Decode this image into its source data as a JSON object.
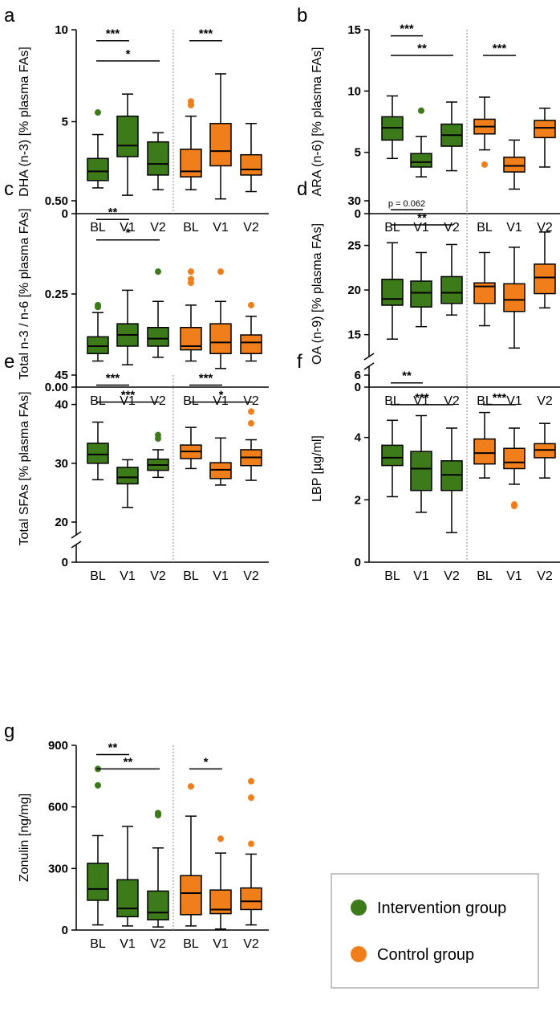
{
  "colors": {
    "intervention": "#3d7a1a",
    "control": "#f07f1b",
    "axis": "#000000",
    "divider": "#888888",
    "legend_border": "#888888"
  },
  "legend": {
    "items": [
      {
        "label": "Intervention group",
        "color": "#3d7a1a"
      },
      {
        "label": "Control group",
        "color": "#f07f1b"
      }
    ]
  },
  "chart_data": [
    {
      "panel": "a",
      "type": "boxplot",
      "ylabel": "DHA (n-3) [% plasma FAs]",
      "ylim": [
        0,
        10
      ],
      "yticks": [
        "0",
        "5",
        "10"
      ],
      "ytick_values": [
        0,
        5,
        10
      ],
      "axis_break": false,
      "categories": [
        "BL",
        "V1",
        "V2",
        "BL",
        "V1",
        "V2"
      ],
      "groups": [
        "intervention",
        "intervention",
        "intervention",
        "control",
        "control",
        "control"
      ],
      "boxes": [
        {
          "min": 1.4,
          "q1": 1.8,
          "median": 2.3,
          "q3": 3.0,
          "max": 4.3,
          "outliers": [
            5.5
          ]
        },
        {
          "min": 1.0,
          "q1": 3.1,
          "median": 3.7,
          "q3": 5.3,
          "max": 6.5,
          "outliers": []
        },
        {
          "min": 1.3,
          "q1": 2.1,
          "median": 2.7,
          "q3": 3.9,
          "max": 4.4,
          "outliers": []
        },
        {
          "min": 1.3,
          "q1": 2.0,
          "median": 2.3,
          "q3": 3.5,
          "max": 5.3,
          "outliers": [
            5.9,
            6.1
          ]
        },
        {
          "min": 0.8,
          "q1": 2.6,
          "median": 3.4,
          "q3": 4.9,
          "max": 7.6,
          "outliers": []
        },
        {
          "min": 1.2,
          "q1": 2.1,
          "median": 2.4,
          "q3": 3.2,
          "max": 4.9,
          "outliers": []
        }
      ],
      "brackets": [
        {
          "from": 0,
          "to": 1,
          "label": "***",
          "y": 9.4
        },
        {
          "from": 0,
          "to": 2,
          "label": "*",
          "y": 8.3
        },
        {
          "from": 3,
          "to": 4,
          "label": "***",
          "y": 9.4
        }
      ]
    },
    {
      "panel": "b",
      "type": "boxplot",
      "ylabel": "ARA (n-6) [% plasma FAs]",
      "ylim": [
        0,
        15
      ],
      "yticks": [
        "0",
        "5",
        "10",
        "15"
      ],
      "ytick_values": [
        0,
        5,
        10,
        15
      ],
      "axis_break": false,
      "categories": [
        "BL",
        "V1",
        "V2",
        "BL",
        "V1",
        "V2"
      ],
      "groups": [
        "intervention",
        "intervention",
        "intervention",
        "control",
        "control",
        "control"
      ],
      "boxes": [
        {
          "min": 4.5,
          "q1": 6.0,
          "median": 7.0,
          "q3": 7.9,
          "max": 9.6,
          "outliers": []
        },
        {
          "min": 3.0,
          "q1": 3.8,
          "median": 4.2,
          "q3": 4.9,
          "max": 6.3,
          "outliers": [
            8.4
          ]
        },
        {
          "min": 3.5,
          "q1": 5.5,
          "median": 6.4,
          "q3": 7.3,
          "max": 9.1,
          "outliers": []
        },
        {
          "min": 5.2,
          "q1": 6.5,
          "median": 7.1,
          "q3": 7.7,
          "max": 9.5,
          "outliers": [
            4.0
          ]
        },
        {
          "min": 2.0,
          "q1": 3.4,
          "median": 3.9,
          "q3": 4.6,
          "max": 6.0,
          "outliers": []
        },
        {
          "min": 3.8,
          "q1": 6.2,
          "median": 7.0,
          "q3": 7.6,
          "max": 8.6,
          "outliers": []
        }
      ],
      "brackets": [
        {
          "from": 0,
          "to": 1,
          "label": "***",
          "y": 14.5
        },
        {
          "from": 0,
          "to": 2,
          "label": "**",
          "y": 12.9
        },
        {
          "from": 3,
          "to": 4,
          "label": "***",
          "y": 12.9
        }
      ]
    },
    {
      "panel": "c",
      "type": "boxplot",
      "ylabel": "Total n-3 / n-6 [% plasma FAs]",
      "ylim": [
        0,
        0.5
      ],
      "yticks": [
        "0.00",
        "0.25",
        "0.50"
      ],
      "ytick_values": [
        0,
        0.25,
        0.5
      ],
      "axis_break": false,
      "categories": [
        "BL",
        "V1",
        "V2",
        "BL",
        "V1",
        "V2"
      ],
      "groups": [
        "intervention",
        "intervention",
        "intervention",
        "control",
        "control",
        "control"
      ],
      "boxes": [
        {
          "min": 0.07,
          "q1": 0.09,
          "median": 0.11,
          "q3": 0.135,
          "max": 0.2,
          "outliers": [
            0.215,
            0.22
          ]
        },
        {
          "min": 0.06,
          "q1": 0.11,
          "median": 0.14,
          "q3": 0.17,
          "max": 0.26,
          "outliers": []
        },
        {
          "min": 0.08,
          "q1": 0.11,
          "median": 0.13,
          "q3": 0.16,
          "max": 0.23,
          "outliers": [
            0.31
          ]
        },
        {
          "min": 0.07,
          "q1": 0.1,
          "median": 0.11,
          "q3": 0.16,
          "max": 0.22,
          "outliers": [
            0.28,
            0.29,
            0.31
          ]
        },
        {
          "min": 0.05,
          "q1": 0.09,
          "median": 0.12,
          "q3": 0.17,
          "max": 0.23,
          "outliers": [
            0.31
          ]
        },
        {
          "min": 0.07,
          "q1": 0.09,
          "median": 0.12,
          "q3": 0.14,
          "max": 0.19,
          "outliers": [
            0.22
          ]
        }
      ],
      "brackets": [
        {
          "from": 0,
          "to": 1,
          "label": "**",
          "y": 0.45
        },
        {
          "from": 0,
          "to": 2,
          "label": "*",
          "y": 0.395
        }
      ]
    },
    {
      "panel": "d",
      "type": "boxplot",
      "ylabel": "OA (n-9) [% plasma FAs]",
      "ylim": [
        0,
        30
      ],
      "yticks": [
        "0",
        "15",
        "20",
        "25",
        "30"
      ],
      "ytick_values": [
        0,
        15,
        20,
        25,
        30
      ],
      "axis_break": true,
      "break_range": [
        12,
        30
      ],
      "categories": [
        "BL",
        "V1",
        "V2",
        "BL",
        "V1",
        "V2"
      ],
      "groups": [
        "intervention",
        "intervention",
        "intervention",
        "control",
        "control",
        "control"
      ],
      "boxes": [
        {
          "min": 14.5,
          "q1": 18.3,
          "median": 19.0,
          "q3": 21.2,
          "max": 25.3,
          "outliers": []
        },
        {
          "min": 15.9,
          "q1": 18.1,
          "median": 19.7,
          "q3": 21.0,
          "max": 24.2,
          "outliers": []
        },
        {
          "min": 17.2,
          "q1": 18.5,
          "median": 19.7,
          "q3": 21.5,
          "max": 25.1,
          "outliers": []
        },
        {
          "min": 16.0,
          "q1": 18.5,
          "median": 20.4,
          "q3": 20.8,
          "max": 24.2,
          "outliers": []
        },
        {
          "min": 13.5,
          "q1": 17.6,
          "median": 18.9,
          "q3": 20.7,
          "max": 24.8,
          "outliers": []
        },
        {
          "min": 18.0,
          "q1": 19.6,
          "median": 21.4,
          "q3": 22.9,
          "max": 26.5,
          "outliers": []
        }
      ],
      "brackets": [
        {
          "from": 0,
          "to": 1,
          "label": "p = 0.062",
          "y": 29.0
        },
        {
          "from": 0,
          "to": 2,
          "label": "**",
          "y": 27.3
        }
      ]
    },
    {
      "panel": "e",
      "type": "boxplot",
      "ylabel": "Total SFAs [% plasma FAs]",
      "ylim": [
        0,
        45
      ],
      "yticks": [
        "0",
        "20",
        "30",
        "40",
        "45"
      ],
      "ytick_values": [
        0,
        20,
        30,
        40,
        45
      ],
      "axis_break": true,
      "break_range": [
        17,
        45
      ],
      "categories": [
        "BL",
        "V1",
        "V2",
        "BL",
        "V1",
        "V2"
      ],
      "groups": [
        "intervention",
        "intervention",
        "intervention",
        "control",
        "control",
        "control"
      ],
      "boxes": [
        {
          "min": 27.2,
          "q1": 30.0,
          "median": 31.5,
          "q3": 33.4,
          "max": 37.0,
          "outliers": []
        },
        {
          "min": 22.5,
          "q1": 26.5,
          "median": 27.6,
          "q3": 29.3,
          "max": 30.6,
          "outliers": []
        },
        {
          "min": 27.6,
          "q1": 28.8,
          "median": 29.7,
          "q3": 30.7,
          "max": 32.3,
          "outliers": [
            34.2,
            34.8
          ]
        },
        {
          "min": 29.1,
          "q1": 30.8,
          "median": 32.0,
          "q3": 33.1,
          "max": 36.1,
          "outliers": []
        },
        {
          "min": 26.3,
          "q1": 27.4,
          "median": 28.9,
          "q3": 30.1,
          "max": 34.3,
          "outliers": []
        },
        {
          "min": 27.1,
          "q1": 29.6,
          "median": 31.0,
          "q3": 32.3,
          "max": 34.0,
          "outliers": [
            36.8,
            38.8
          ]
        }
      ],
      "brackets": [
        {
          "from": 0,
          "to": 1,
          "label": "***",
          "y": 43.3
        },
        {
          "from": 0,
          "to": 2,
          "label": "***",
          "y": 40.4
        },
        {
          "from": 3,
          "to": 4,
          "label": "***",
          "y": 43.3
        },
        {
          "from": 3,
          "to": 5,
          "label": "*",
          "y": 40.4
        }
      ]
    },
    {
      "panel": "f",
      "type": "boxplot",
      "ylabel": "LBP [µg/ml]",
      "ylim": [
        0,
        6
      ],
      "yticks": [
        "0",
        "2",
        "4",
        "6"
      ],
      "ytick_values": [
        0,
        2,
        4,
        6
      ],
      "axis_break": false,
      "categories": [
        "BL",
        "V1",
        "V2",
        "BL",
        "V1",
        "V2"
      ],
      "groups": [
        "intervention",
        "intervention",
        "intervention",
        "control",
        "control",
        "control"
      ],
      "boxes": [
        {
          "min": 2.1,
          "q1": 3.1,
          "median": 3.35,
          "q3": 3.75,
          "max": 4.55,
          "outliers": []
        },
        {
          "min": 1.6,
          "q1": 2.3,
          "median": 3.0,
          "q3": 3.55,
          "max": 4.7,
          "outliers": []
        },
        {
          "min": 0.95,
          "q1": 2.3,
          "median": 2.8,
          "q3": 3.25,
          "max": 4.3,
          "outliers": []
        },
        {
          "min": 2.7,
          "q1": 3.15,
          "median": 3.5,
          "q3": 3.95,
          "max": 4.8,
          "outliers": []
        },
        {
          "min": 2.5,
          "q1": 3.0,
          "median": 3.2,
          "q3": 3.65,
          "max": 4.3,
          "outliers": [
            1.8,
            1.85
          ]
        },
        {
          "min": 2.7,
          "q1": 3.35,
          "median": 3.6,
          "q3": 3.8,
          "max": 4.45,
          "outliers": []
        }
      ],
      "brackets": [
        {
          "from": 0,
          "to": 1,
          "label": "**",
          "y": 5.75
        },
        {
          "from": 0,
          "to": 2,
          "label": "***",
          "y": 5.05
        },
        {
          "from": 3,
          "to": 4,
          "label": "***",
          "y": 5.05
        }
      ]
    },
    {
      "panel": "g",
      "type": "boxplot",
      "ylabel": "Zonulin [ng/mg]",
      "ylim": [
        0,
        900
      ],
      "yticks": [
        "0",
        "300",
        "600",
        "900"
      ],
      "ytick_values": [
        0,
        300,
        600,
        900
      ],
      "axis_break": false,
      "categories": [
        "BL",
        "V1",
        "V2",
        "BL",
        "V1",
        "V2"
      ],
      "groups": [
        "intervention",
        "intervention",
        "intervention",
        "control",
        "control",
        "control"
      ],
      "boxes": [
        {
          "min": 25,
          "q1": 145,
          "median": 200,
          "q3": 325,
          "max": 460,
          "outliers": [
            705,
            785
          ]
        },
        {
          "min": 20,
          "q1": 65,
          "median": 105,
          "q3": 245,
          "max": 505,
          "outliers": []
        },
        {
          "min": 15,
          "q1": 50,
          "median": 85,
          "q3": 190,
          "max": 400,
          "outliers": [
            560,
            570
          ]
        },
        {
          "min": 20,
          "q1": 75,
          "median": 180,
          "q3": 265,
          "max": 555,
          "outliers": [
            700
          ]
        },
        {
          "min": 5,
          "q1": 80,
          "median": 100,
          "q3": 195,
          "max": 375,
          "outliers": [
            445
          ]
        },
        {
          "min": 25,
          "q1": 100,
          "median": 140,
          "q3": 205,
          "max": 370,
          "outliers": [
            420,
            645,
            725
          ]
        }
      ],
      "brackets": [
        {
          "from": 0,
          "to": 1,
          "label": "**",
          "y": 855
        },
        {
          "from": 0,
          "to": 2,
          "label": "**",
          "y": 785
        },
        {
          "from": 3,
          "to": 4,
          "label": "*",
          "y": 785
        }
      ]
    }
  ]
}
